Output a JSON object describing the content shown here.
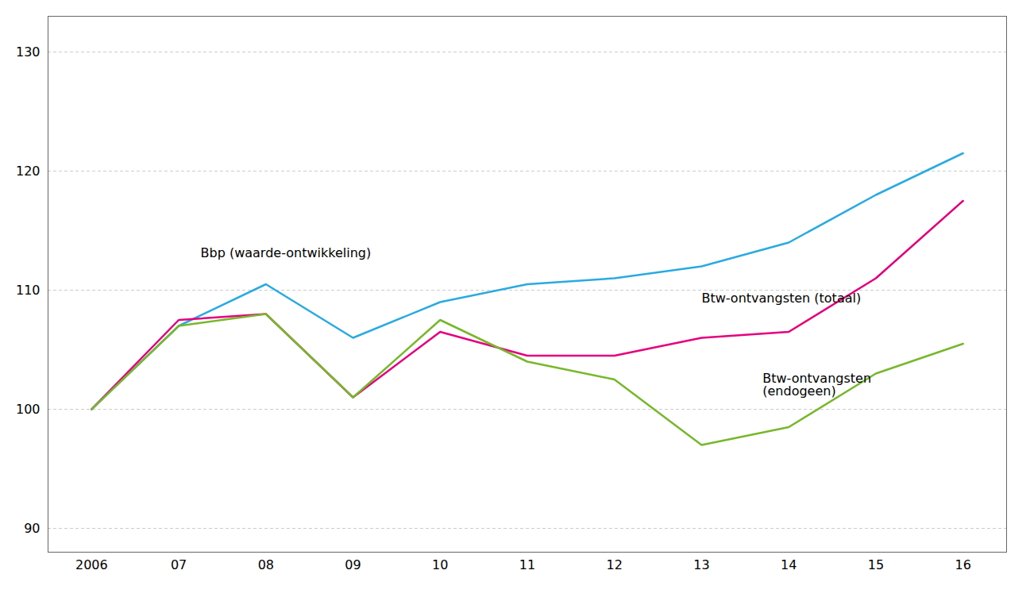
{
  "chart_data": {
    "type": "line",
    "x": [
      2006,
      2007,
      2008,
      2009,
      2010,
      2011,
      2012,
      2013,
      2014,
      2015,
      2016
    ],
    "xlim": [
      2005.5,
      2016.5
    ],
    "xticks": [
      2006,
      {
        "value": 2007,
        "label": "07"
      },
      {
        "value": 2008,
        "label": "08"
      },
      {
        "value": 2009,
        "label": "09"
      },
      {
        "value": 2010,
        "label": "10"
      },
      {
        "value": 2011,
        "label": "11"
      },
      {
        "value": 2012,
        "label": "12"
      },
      {
        "value": 2013,
        "label": "13"
      },
      {
        "value": 2014,
        "label": "14"
      },
      {
        "value": 2015,
        "label": "15"
      },
      {
        "value": 2016,
        "label": "16"
      }
    ],
    "ylim": [
      88,
      133
    ],
    "yticks": [
      90,
      100,
      110,
      120,
      130
    ],
    "grid": true,
    "series": [
      {
        "color": "#29ABE2",
        "values": [
          100,
          107,
          110.5,
          106,
          109,
          110.5,
          111,
          112,
          114,
          118,
          121.5
        ]
      },
      {
        "color": "#E6007E",
        "values": [
          100,
          107.5,
          108,
          101,
          106.5,
          104.5,
          104.5,
          106,
          106.5,
          111,
          117.5
        ]
      },
      {
        "color": "#76B82A",
        "values": [
          100,
          107,
          108,
          101,
          107.5,
          104,
          102.5,
          97,
          98.5,
          103,
          105.5
        ]
      }
    ],
    "annotations": [
      {
        "text": "Bbp (waarde-ontwikkeling)",
        "x": 2007.25,
        "y": 112.8
      },
      {
        "text": "Btw-ontvangsten (totaal)",
        "x": 2013.0,
        "y": 109.0
      },
      {
        "text": "Btw-ontvangsten\n(endogeen)",
        "x": 2013.7,
        "y": 101.2
      }
    ]
  }
}
